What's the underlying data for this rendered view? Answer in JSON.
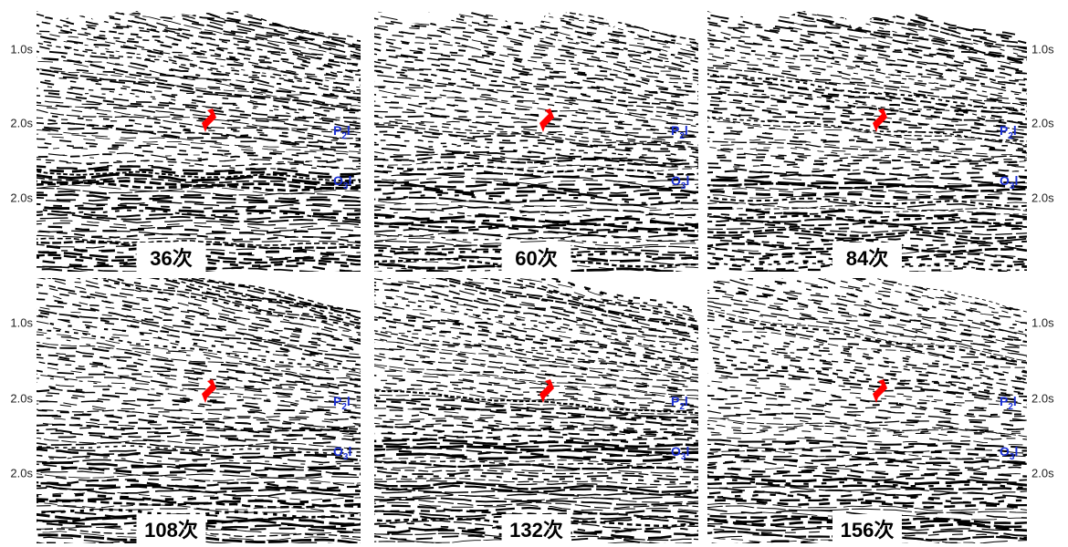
{
  "left_axis": [
    "1.0s",
    "2.0s",
    "2.0s"
  ],
  "right_axis": [
    "1.0s",
    "2.0s",
    "2.0s"
  ],
  "horizons": [
    {
      "base": "P",
      "sub": "2",
      "tail": "l"
    },
    {
      "base": "O",
      "sub": "3",
      "tail": "l"
    }
  ],
  "panels": [
    {
      "label": "36次"
    },
    {
      "label": "60次"
    },
    {
      "label": "84次"
    },
    {
      "label": "108次"
    },
    {
      "label": "132次"
    },
    {
      "label": "156次"
    }
  ]
}
